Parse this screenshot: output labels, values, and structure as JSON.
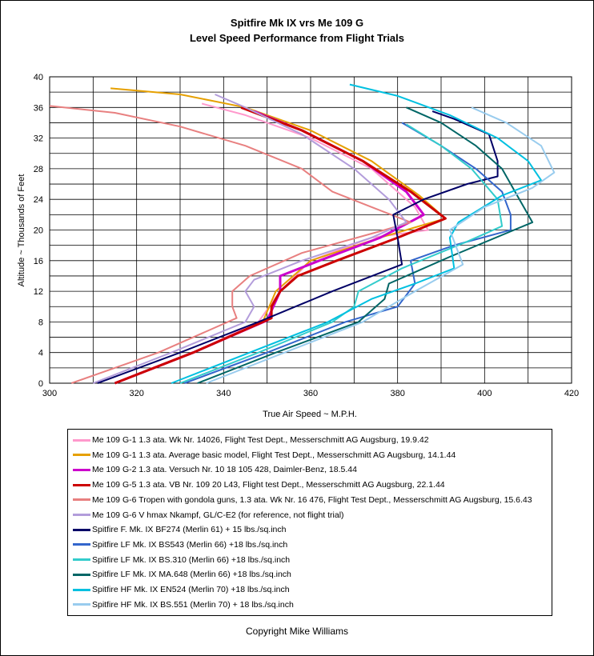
{
  "chart_data": {
    "type": "line",
    "title": "Spitfire Mk IX vrs Me 109 G",
    "subtitle": "Level Speed Performance from Flight Trials",
    "xlabel": "True Air Speed ~ M.P.H.",
    "ylabel": "Altitude ~ Thousands of Feet",
    "xlim": [
      300,
      420
    ],
    "ylim": [
      0,
      40
    ],
    "xticks": [
      "300",
      "320",
      "340",
      "360",
      "380",
      "400",
      "420"
    ],
    "yticks": [
      "0",
      "4",
      "8",
      "12",
      "16",
      "20",
      "24",
      "28",
      "32",
      "36",
      "40"
    ],
    "grid": true,
    "legend_position": "bottom",
    "series": [
      {
        "name": "Me 109 G-1 1.3 ata.  Wk Nr. 14026, Flight Test Dept., Messerschmitt AG Augsburg, 19.9.42",
        "color": "#ff99cc",
        "width": 2,
        "points": [
          [
            315,
            0
          ],
          [
            333,
            4
          ],
          [
            348,
            8
          ],
          [
            353,
            12
          ],
          [
            360,
            16
          ],
          [
            374,
            19
          ],
          [
            387,
            20
          ],
          [
            384,
            23
          ],
          [
            374,
            28
          ],
          [
            360,
            32
          ],
          [
            345,
            35
          ],
          [
            335,
            36.5
          ]
        ]
      },
      {
        "name": "Me 109 G-1 1.3 ata.  Average basic model, Flight Test Dept., Messerschmitt AG Augsburg, 14.1.44",
        "color": "#e6a000",
        "width": 2,
        "points": [
          [
            315,
            0
          ],
          [
            333,
            4
          ],
          [
            349,
            8
          ],
          [
            352,
            12
          ],
          [
            360,
            16
          ],
          [
            376,
            19
          ],
          [
            391,
            21.5
          ],
          [
            385,
            24.5
          ],
          [
            374,
            29
          ],
          [
            360,
            33
          ],
          [
            345,
            36
          ],
          [
            330,
            37.7
          ],
          [
            314,
            38.5
          ]
        ]
      },
      {
        "name": "Me 109 G-2 1.3 ata.  Versuch Nr. 10 18 105 428, Daimler-Benz, 18.5.44",
        "color": "#cc00cc",
        "width": 3,
        "points": [
          [
            315,
            0
          ],
          [
            333,
            4
          ],
          [
            350,
            8.2
          ],
          [
            353,
            12
          ],
          [
            353,
            14
          ],
          [
            362,
            16
          ],
          [
            376,
            19
          ],
          [
            386,
            22
          ],
          [
            382,
            25
          ],
          [
            372,
            29
          ],
          [
            358,
            33
          ],
          [
            347,
            35.5
          ]
        ]
      },
      {
        "name": "Me 109 G-5 1.3 ata.  VB Nr. 109 20 L43, Flight test Dept., Messerschmitt AG Augsburg, 22.1.44",
        "color": "#cc0000",
        "width": 3,
        "points": [
          [
            315,
            0
          ],
          [
            333,
            4
          ],
          [
            351,
            8.5
          ],
          [
            351,
            10
          ],
          [
            353,
            12
          ],
          [
            357,
            14
          ],
          [
            366,
            16
          ],
          [
            380,
            19
          ],
          [
            391,
            21.5
          ],
          [
            383,
            25
          ],
          [
            372,
            29
          ],
          [
            358,
            33
          ],
          [
            344,
            36
          ]
        ]
      },
      {
        "name": "Me 109 G-6 Tropen with gondola guns, 1.3 ata. Wk Nr. 16 476, Flight Test Dept., Messerschmitt AG Augsburg, 15.6.43",
        "color": "#e88080",
        "width": 2,
        "points": [
          [
            305,
            0
          ],
          [
            325,
            4
          ],
          [
            343,
            8.5
          ],
          [
            342,
            10
          ],
          [
            342,
            12
          ],
          [
            346,
            14
          ],
          [
            358,
            17
          ],
          [
            377,
            20
          ],
          [
            383,
            21
          ],
          [
            374,
            23
          ],
          [
            365,
            25
          ],
          [
            358,
            28
          ],
          [
            345,
            31
          ],
          [
            330,
            33.5
          ],
          [
            315,
            35.3
          ],
          [
            300,
            36.2
          ]
        ]
      },
      {
        "name": "Me 109 G-6 V hmax Nkampf,  GL/C-E2  (for reference, not flight trial)",
        "color": "#b39ddb",
        "width": 2,
        "points": [
          [
            310,
            0
          ],
          [
            328,
            4
          ],
          [
            345,
            8
          ],
          [
            347,
            10
          ],
          [
            345,
            12
          ],
          [
            347,
            13.5
          ],
          [
            358,
            16
          ],
          [
            374,
            19
          ],
          [
            382,
            21
          ],
          [
            378,
            24
          ],
          [
            370,
            28
          ],
          [
            358,
            32.5
          ],
          [
            345,
            36
          ],
          [
            338,
            37.7
          ]
        ]
      },
      {
        "name": "Spitfire F. Mk. IX BF274 (Merlin 61)  + 15 lbs./sq.inch",
        "color": "#000066",
        "width": 2,
        "points": [
          [
            311,
            0
          ],
          [
            330,
            4
          ],
          [
            348,
            8
          ],
          [
            365,
            12
          ],
          [
            381,
            15.5
          ],
          [
            380,
            19
          ],
          [
            379,
            22
          ],
          [
            386,
            24
          ],
          [
            396,
            26
          ],
          [
            403,
            27
          ],
          [
            403,
            29
          ],
          [
            401,
            32.5
          ],
          [
            393,
            34.5
          ],
          [
            388,
            35.5
          ]
        ]
      },
      {
        "name": "Spitfire LF Mk. IX BS543 (Merlin 66) +18 lbs./sq.inch",
        "color": "#3366cc",
        "width": 2,
        "points": [
          [
            331,
            0
          ],
          [
            350,
            4
          ],
          [
            368,
            8
          ],
          [
            380,
            10
          ],
          [
            384,
            13
          ],
          [
            383,
            16
          ],
          [
            393,
            18
          ],
          [
            406,
            20
          ],
          [
            406,
            22
          ],
          [
            404,
            25
          ],
          [
            398,
            28
          ],
          [
            390,
            31
          ],
          [
            381,
            34
          ]
        ]
      },
      {
        "name": "Spitfire LF Mk. IX BS.310 (Merlin 66) +18 lbs./sq.inch",
        "color": "#33cccc",
        "width": 2,
        "points": [
          [
            330,
            0
          ],
          [
            348,
            4
          ],
          [
            365,
            8
          ],
          [
            370,
            10
          ],
          [
            371,
            12
          ],
          [
            381,
            15
          ],
          [
            396,
            18.5
          ],
          [
            404,
            20.5
          ],
          [
            403,
            24
          ],
          [
            397,
            28
          ],
          [
            390,
            31
          ],
          [
            382,
            33.8
          ]
        ]
      },
      {
        "name": "Spitfire LF Mk. IX MA.648 (Merlin 66) +18 lbs./sq.inch",
        "color": "#006666",
        "width": 2,
        "points": [
          [
            334,
            0
          ],
          [
            352,
            4
          ],
          [
            371,
            8
          ],
          [
            377,
            11
          ],
          [
            378,
            13
          ],
          [
            392,
            16.5
          ],
          [
            411,
            21
          ],
          [
            408,
            24
          ],
          [
            404,
            28
          ],
          [
            398,
            31
          ],
          [
            390,
            34
          ],
          [
            382,
            36
          ]
        ]
      },
      {
        "name": "Spitfire HF Mk. IX EN524 (Merlin 70) +18 lbs./sq.inch",
        "color": "#00c0e0",
        "width": 2,
        "points": [
          [
            328,
            0
          ],
          [
            346,
            4
          ],
          [
            364,
            8
          ],
          [
            374,
            11
          ],
          [
            384,
            13
          ],
          [
            393,
            15
          ],
          [
            392,
            19
          ],
          [
            394,
            21
          ],
          [
            404,
            24.5
          ],
          [
            413,
            26.5
          ],
          [
            410,
            29
          ],
          [
            403,
            32
          ],
          [
            392,
            35
          ],
          [
            380,
            37.5
          ],
          [
            369,
            39
          ]
        ]
      },
      {
        "name": "Spitfire HF Mk. IX  BS.551 (Merlin 70) + 18 lbs./sq.inch",
        "color": "#99ccee",
        "width": 2,
        "points": [
          [
            336,
            0
          ],
          [
            354,
            4
          ],
          [
            372,
            8
          ],
          [
            384,
            12
          ],
          [
            395,
            15.5
          ],
          [
            392,
            20
          ],
          [
            400,
            23
          ],
          [
            411,
            25.5
          ],
          [
            416,
            27.5
          ],
          [
            413,
            31
          ],
          [
            405,
            34
          ],
          [
            397,
            36
          ]
        ]
      }
    ]
  },
  "copyright": "Copyright Mike Williams"
}
